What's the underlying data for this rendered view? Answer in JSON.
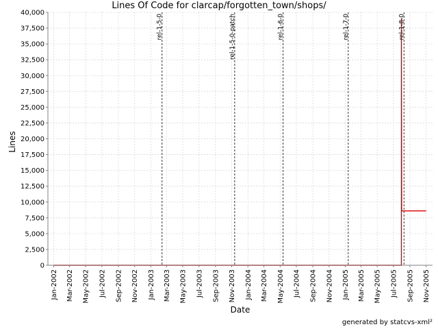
{
  "chart_data": {
    "type": "line",
    "title": "Lines Of Code for clarcap/forgotten_town/shops/",
    "xlabel": "Date",
    "ylabel": "Lines",
    "ylim": [
      0,
      40000
    ],
    "yticks": [
      0,
      2500,
      5000,
      7500,
      10000,
      12500,
      15000,
      17500,
      20000,
      22500,
      25000,
      27500,
      30000,
      32500,
      35000,
      37500,
      40000
    ],
    "ytick_labels": [
      "0",
      "2,500",
      "5,000",
      "7,500",
      "10,000",
      "12,500",
      "15,000",
      "17,500",
      "20,000",
      "22,500",
      "25,000",
      "27,500",
      "30,000",
      "32,500",
      "35,000",
      "37,500",
      "40,000"
    ],
    "xlim": [
      "2001-12-10",
      "2005-11-25"
    ],
    "xticks": [
      "2002-01-01",
      "2002-03-01",
      "2002-05-01",
      "2002-07-01",
      "2002-09-01",
      "2002-11-01",
      "2003-01-01",
      "2003-03-01",
      "2003-05-01",
      "2003-07-01",
      "2003-09-01",
      "2003-11-01",
      "2004-01-01",
      "2004-03-01",
      "2004-05-01",
      "2004-07-01",
      "2004-09-01",
      "2004-11-01",
      "2005-01-01",
      "2005-03-01",
      "2005-05-01",
      "2005-07-01",
      "2005-09-01",
      "2005-11-01"
    ],
    "xtick_labels": [
      "Jan-2002",
      "Mar-2002",
      "May-2002",
      "Jul-2002",
      "Sep-2002",
      "Nov-2002",
      "Jan-2003",
      "Mar-2003",
      "May-2003",
      "Jul-2003",
      "Sep-2003",
      "Nov-2003",
      "Jan-2004",
      "Mar-2004",
      "May-2004",
      "Jul-2004",
      "Sep-2004",
      "Nov-2004",
      "Jan-2005",
      "Mar-2005",
      "May-2005",
      "Jul-2005",
      "Sep-2005",
      "Nov-2005"
    ],
    "grid": true,
    "series": [
      {
        "color": "#dd0000",
        "points": [
          {
            "x": "2002-01-01",
            "y": 0
          },
          {
            "x": "2005-07-31",
            "y": 0
          },
          {
            "x": "2005-07-31",
            "y": 39000
          },
          {
            "x": "2005-08-01",
            "y": 8600
          },
          {
            "x": "2005-10-31",
            "y": 8600
          }
        ]
      }
    ],
    "annotations": [
      {
        "label": "rel-1-5-0",
        "x": "2003-02-12"
      },
      {
        "label": "rel-1-5-0-patch",
        "x": "2003-11-12"
      },
      {
        "label": "rel-1-6-0",
        "x": "2004-05-12"
      },
      {
        "label": "rel-1-7-0",
        "x": "2005-01-12"
      },
      {
        "label": "rel-1-8-0",
        "x": "2005-08-10"
      }
    ]
  },
  "footer": "generated by statcvs-xml²"
}
